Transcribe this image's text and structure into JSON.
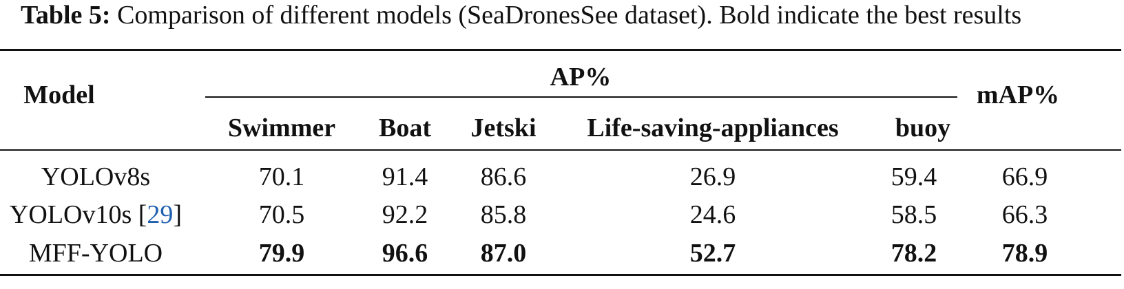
{
  "caption": {
    "label": "Table 5:",
    "text": "Comparison of different models (SeaDronesSee dataset). Bold indicate the best results"
  },
  "table": {
    "header": {
      "model": "Model",
      "group": "AP%",
      "columns": [
        "Swimmer",
        "Boat",
        "Jetski",
        "Life-saving-appliances",
        "buoy"
      ],
      "map": "mAP%"
    },
    "rows": [
      {
        "model": "YOLOv8s",
        "ref": "",
        "values": [
          "70.1",
          "91.4",
          "86.6",
          "26.9",
          "59.4"
        ],
        "map": "66.9",
        "bold": false
      },
      {
        "model": "YOLOv10s",
        "ref": "29",
        "values": [
          "70.5",
          "92.2",
          "85.8",
          "24.6",
          "58.5"
        ],
        "map": "66.3",
        "bold": false
      },
      {
        "model": "MFF-YOLO",
        "ref": "",
        "values": [
          "79.9",
          "96.6",
          "87.0",
          "52.7",
          "78.2"
        ],
        "map": "78.9",
        "bold": true
      }
    ]
  },
  "colors": {
    "text": "#111111",
    "link": "#1f5fb0"
  }
}
